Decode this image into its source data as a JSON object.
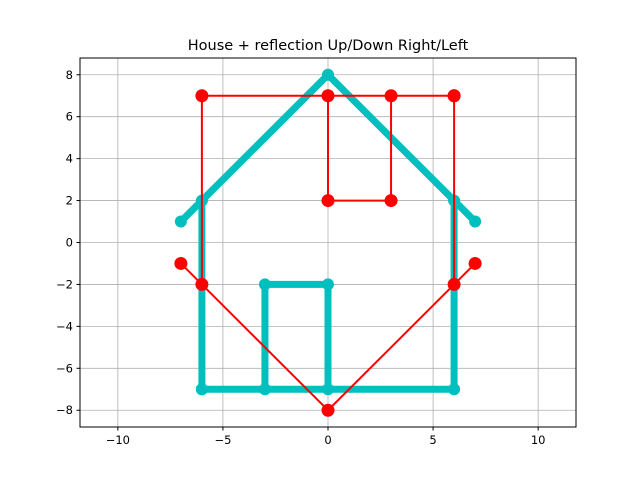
{
  "chart_data": {
    "type": "line",
    "title": "House + reflection Up/Down Right/Left",
    "xlabel": "",
    "ylabel": "",
    "xlim": [
      -11.8,
      11.8
    ],
    "ylim": [
      -8.8,
      8.8
    ],
    "xticks": [
      -10,
      -5,
      0,
      5,
      10
    ],
    "yticks": [
      -8,
      -6,
      -4,
      -2,
      0,
      2,
      4,
      6,
      8
    ],
    "xtick_labels": [
      "−10",
      "−5",
      "0",
      "5",
      "10"
    ],
    "ytick_labels": [
      "−8",
      "−6",
      "−4",
      "−2",
      "0",
      "2",
      "4",
      "6",
      "8"
    ],
    "grid": true,
    "series": [
      {
        "color": "#00bfbf",
        "marker": "circle",
        "style": "thick",
        "x": [
          -6,
          -6,
          -7,
          0,
          7,
          6,
          6,
          -3,
          -3,
          0,
          0,
          -6
        ],
        "y": [
          -7,
          2,
          1,
          8,
          1,
          2,
          -7,
          -7,
          -2,
          -2,
          -7,
          -7
        ]
      },
      {
        "color": "#ff0000",
        "marker": "circle",
        "style": "thin",
        "x": [
          6,
          6,
          7,
          0,
          -7,
          -6,
          -6,
          3,
          3,
          0,
          0,
          6
        ],
        "y": [
          7,
          -2,
          -1,
          -8,
          -1,
          -2,
          7,
          7,
          2,
          2,
          7,
          7
        ]
      }
    ]
  }
}
